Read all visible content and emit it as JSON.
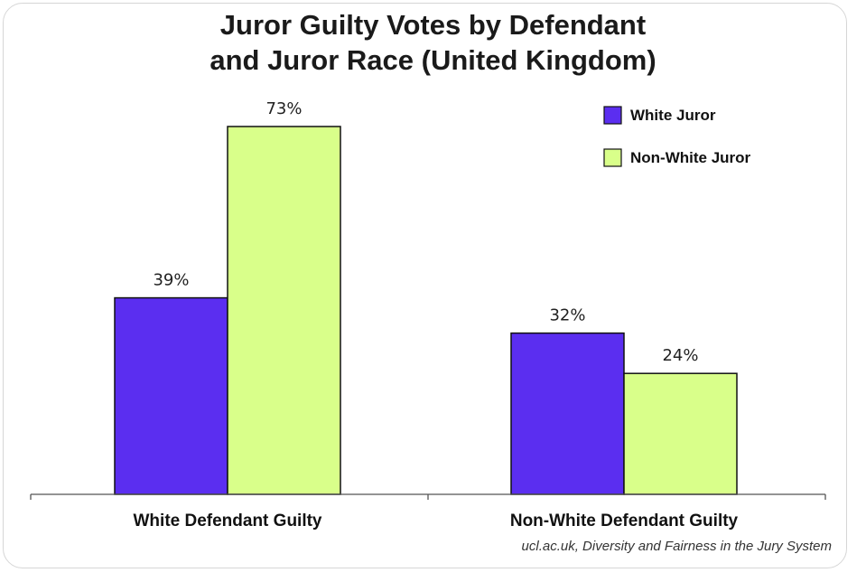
{
  "chart_data": {
    "type": "bar",
    "title_lines": [
      "Juror Guilty Votes by Defendant",
      "and Juror Race (United Kingdom)"
    ],
    "categories": [
      "White Defendant Guilty",
      "Non-White Defendant Guilty"
    ],
    "series": [
      {
        "name": "White Juror",
        "values": [
          39,
          32
        ],
        "labels": [
          "39%",
          "32%"
        ],
        "color": "#5b2ef0"
      },
      {
        "name": "Non-White Juror",
        "values": [
          73,
          24
        ],
        "labels": [
          "73%",
          "24%"
        ],
        "color": "#d9ff8a"
      }
    ],
    "ylim": [
      0,
      80
    ],
    "grid": false,
    "legend_position": "top-right",
    "source": "ucl.ac.uk, Diversity and Fairness in the Jury System"
  }
}
